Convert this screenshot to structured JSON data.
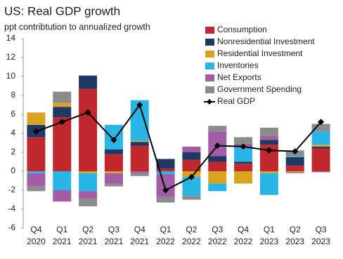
{
  "chart_data": {
    "type": "bar",
    "title": "US: Real GDP growth",
    "subtitle": "ppt contribtution to annualized growth",
    "categories": [
      [
        "Q4",
        "2020"
      ],
      [
        "Q1",
        "2021"
      ],
      [
        "Q2",
        "2021"
      ],
      [
        "Q3",
        "2021"
      ],
      [
        "Q4",
        "2021"
      ],
      [
        "Q1",
        "2022"
      ],
      [
        "Q2",
        "2022"
      ],
      [
        "Q3",
        "2022"
      ],
      [
        "Q4",
        "2022"
      ],
      [
        "Q1",
        "2023"
      ],
      [
        "Q2",
        "2023"
      ],
      [
        "Q3",
        "2023"
      ]
    ],
    "series": [
      {
        "name": "Consumption",
        "type": "bar",
        "color": "#c0282d",
        "values": [
          3.6,
          5.7,
          8.7,
          1.8,
          2.7,
          0.3,
          1.2,
          1.0,
          0.8,
          2.8,
          0.6,
          2.4
        ]
      },
      {
        "name": "Nonresidential Investment",
        "type": "bar",
        "color": "#1f3864",
        "values": [
          1.3,
          1.1,
          1.4,
          0.5,
          0.4,
          1.0,
          0.8,
          0.6,
          0.2,
          0.5,
          0.9,
          0.2
        ]
      },
      {
        "name": "Residential Investment",
        "type": "bar",
        "color": "#d9a520",
        "values": [
          1.3,
          0.4,
          -0.2,
          -0.2,
          0.1,
          0.0,
          -0.6,
          -1.3,
          -1.3,
          -0.2,
          -0.1,
          0.2
        ]
      },
      {
        "name": "Inventories",
        "type": "bar",
        "color": "#29b6e6",
        "values": [
          -0.2,
          -2.0,
          -1.9,
          2.6,
          4.3,
          -0.3,
          -2.0,
          -0.8,
          1.5,
          -2.3,
          0.1,
          1.4
        ]
      },
      {
        "name": "Net Exports",
        "type": "bar",
        "color": "#a35ca6",
        "values": [
          -1.4,
          -1.2,
          -0.8,
          -1.1,
          -0.2,
          -2.4,
          0.6,
          2.6,
          0.4,
          0.4,
          -0.1,
          -0.1
        ]
      },
      {
        "name": "Government Spending",
        "type": "bar",
        "color": "#8c8c8c",
        "values": [
          -0.5,
          1.2,
          -0.8,
          -0.3,
          -0.3,
          -0.6,
          -0.4,
          0.6,
          0.7,
          0.9,
          0.6,
          0.8
        ]
      },
      {
        "name": "Real GDP",
        "type": "line",
        "color": "#000000",
        "values": [
          4.2,
          5.2,
          6.2,
          3.3,
          7.0,
          -2.0,
          -0.6,
          2.7,
          2.6,
          2.2,
          2.1,
          5.2
        ]
      }
    ],
    "ylim": [
      -6,
      14
    ],
    "yticks": [
      -6,
      -4,
      -2,
      0,
      2,
      4,
      6,
      8,
      10,
      12,
      14
    ],
    "legend": "upper right"
  }
}
